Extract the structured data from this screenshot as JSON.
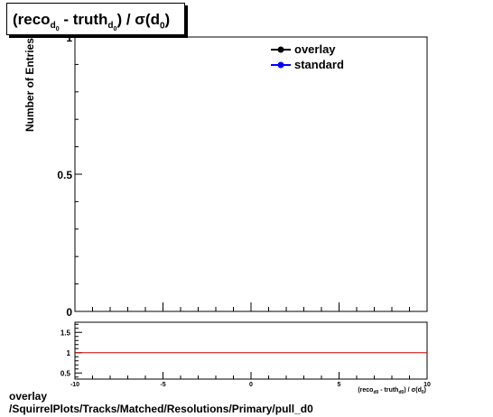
{
  "title": {
    "lhs_prefix": "(reco",
    "sub1": "d",
    "sub1sub": "0",
    "mid": " - truth",
    "sub2": "d",
    "sub2sub": "0",
    "close": ")",
    "divider": " / ",
    "sigma": "σ(d",
    "sub3": "0",
    "end": ")"
  },
  "footer": {
    "line1": "overlay",
    "line2": "/SquirrelPlots/Tracks/Matched/Resolutions/Primary/pull_d0"
  },
  "chart_data": [
    {
      "type": "line",
      "ylabel": "Number of Entries",
      "xlim": [
        -10,
        10
      ],
      "ylim": [
        0,
        1
      ],
      "ytick_labels": [
        "0",
        "0.5",
        "1"
      ],
      "series": [
        {
          "name": "overlay",
          "color": "#000000",
          "x": [],
          "y": []
        },
        {
          "name": "standard",
          "color": "#0000ff",
          "x": [],
          "y": []
        }
      ],
      "legend_position": "top-right"
    },
    {
      "type": "line",
      "xlim": [
        -10,
        10
      ],
      "ylim": [
        0.35,
        1.75
      ],
      "xtick_labels": [
        "-10",
        "-5",
        "0",
        "5",
        "10"
      ],
      "ytick_labels": [
        "0.5",
        "1",
        "1.5"
      ],
      "xlabel": "(reco_d0 - truth_d0) / σ(d0)",
      "reference_line": {
        "y": 1,
        "color": "#cc0000"
      }
    }
  ]
}
